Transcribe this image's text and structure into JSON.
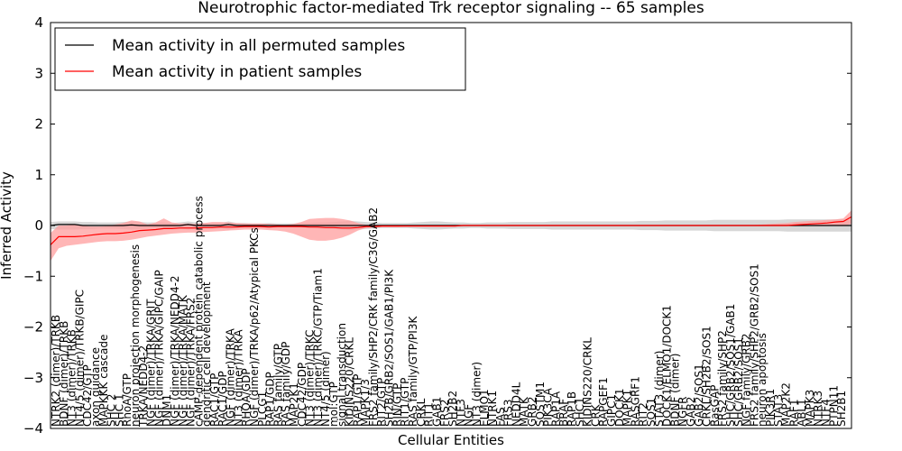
{
  "chart_data": {
    "type": "line",
    "title": "Neurotrophic factor-mediated Trk receptor signaling -- 65 samples",
    "xlabel": "Cellular Entities",
    "ylabel": "Inferred Activity",
    "ylim": [
      -4,
      4
    ],
    "yticks": [
      -4,
      -3,
      -2,
      -1,
      0,
      1,
      2,
      3,
      4
    ],
    "ytick_labels": [
      "−4",
      "−3",
      "−2",
      "−1",
      "0",
      "1",
      "2",
      "3",
      "4"
    ],
    "grid": false,
    "legend_placement": "top-left",
    "legend": [
      "Mean activity in all permuted samples",
      "Mean activity in patient samples"
    ],
    "series": [
      {
        "name": "Mean activity in all permuted samples",
        "color": "#000000",
        "band_color": "#bdbdbd",
        "values": [
          0.0,
          0.02,
          0.02,
          0.02,
          0.0,
          0.0,
          0.0,
          0.0,
          0.0,
          0.0,
          0.01,
          0.0,
          0.0,
          0.0,
          0.0,
          0.0,
          0.0,
          0.02,
          0.0,
          0.0,
          0.0,
          0.0,
          0.02,
          0.0,
          0.0,
          0.0,
          0.0,
          0.0,
          0.0,
          0.0,
          0.0,
          0.0,
          0.0,
          0.0,
          0.0,
          0.0,
          0.0,
          0.0,
          0.0,
          0.0,
          0.0,
          0.0,
          0.0,
          0.0,
          0.0,
          0.0,
          0.0,
          0.0,
          0.0,
          0.0,
          0.0,
          0.0,
          0.0,
          0.0,
          0.0,
          0.0,
          0.0,
          0.0,
          0.0,
          0.0,
          0.0,
          0.0,
          0.0,
          0.0,
          0.0,
          0.0,
          0.0,
          0.0,
          0.0,
          0.0,
          0.0,
          0.0,
          0.0,
          0.0,
          0.0,
          0.0,
          0.0,
          0.0,
          0.0,
          0.0,
          0.0,
          0.0,
          0.0,
          0.0,
          0.0,
          0.0,
          0.0,
          0.0,
          0.0,
          0.0,
          0.0,
          0.0,
          0.0,
          0.0,
          0.0,
          0.0,
          0.0,
          0.0,
          0.0,
          0.0
        ],
        "lower": [
          -0.07,
          -0.08,
          -0.08,
          -0.08,
          -0.07,
          -0.07,
          -0.06,
          -0.06,
          -0.06,
          -0.07,
          -0.08,
          -0.07,
          -0.06,
          -0.06,
          -0.06,
          -0.05,
          -0.06,
          -0.08,
          -0.06,
          -0.05,
          -0.05,
          -0.05,
          -0.08,
          -0.05,
          -0.05,
          -0.04,
          -0.04,
          -0.05,
          -0.04,
          -0.04,
          -0.04,
          -0.05,
          -0.05,
          -0.06,
          -0.06,
          -0.07,
          -0.08,
          -0.09,
          -0.08,
          -0.07,
          -0.06,
          -0.05,
          -0.05,
          -0.05,
          -0.05,
          -0.06,
          -0.07,
          -0.08,
          -0.08,
          -0.07,
          -0.06,
          -0.06,
          -0.05,
          -0.05,
          -0.06,
          -0.06,
          -0.06,
          -0.07,
          -0.07,
          -0.07,
          -0.07,
          -0.07,
          -0.08,
          -0.08,
          -0.08,
          -0.08,
          -0.08,
          -0.08,
          -0.08,
          -0.08,
          -0.08,
          -0.08,
          -0.08,
          -0.09,
          -0.09,
          -0.09,
          -0.1,
          -0.1,
          -0.1,
          -0.1,
          -0.1,
          -0.1,
          -0.11,
          -0.11,
          -0.11,
          -0.11,
          -0.11,
          -0.11,
          -0.11,
          -0.11,
          -0.11,
          -0.12,
          -0.12,
          -0.12,
          -0.12,
          -0.12,
          -0.12,
          -0.12,
          -0.12,
          -0.12
        ],
        "upper": [
          0.07,
          0.08,
          0.08,
          0.08,
          0.07,
          0.07,
          0.06,
          0.06,
          0.06,
          0.07,
          0.08,
          0.07,
          0.06,
          0.06,
          0.06,
          0.05,
          0.06,
          0.08,
          0.06,
          0.05,
          0.05,
          0.05,
          0.08,
          0.05,
          0.05,
          0.04,
          0.04,
          0.05,
          0.04,
          0.04,
          0.04,
          0.05,
          0.05,
          0.06,
          0.06,
          0.07,
          0.08,
          0.09,
          0.08,
          0.07,
          0.06,
          0.05,
          0.05,
          0.05,
          0.05,
          0.06,
          0.07,
          0.08,
          0.08,
          0.07,
          0.06,
          0.06,
          0.05,
          0.05,
          0.06,
          0.06,
          0.06,
          0.07,
          0.07,
          0.07,
          0.07,
          0.07,
          0.08,
          0.08,
          0.08,
          0.08,
          0.08,
          0.08,
          0.08,
          0.08,
          0.08,
          0.08,
          0.08,
          0.09,
          0.09,
          0.09,
          0.1,
          0.1,
          0.1,
          0.1,
          0.1,
          0.1,
          0.11,
          0.11,
          0.11,
          0.11,
          0.11,
          0.11,
          0.11,
          0.11,
          0.11,
          0.12,
          0.12,
          0.12,
          0.12,
          0.12,
          0.12,
          0.12,
          0.12,
          0.12
        ]
      },
      {
        "name": "Mean activity in patient samples",
        "color": "#ff0000",
        "band_color": "#ff9d9d",
        "values": [
          -0.38,
          -0.22,
          -0.22,
          -0.22,
          -0.21,
          -0.19,
          -0.17,
          -0.16,
          -0.16,
          -0.15,
          -0.13,
          -0.1,
          -0.09,
          -0.08,
          -0.06,
          -0.06,
          -0.05,
          -0.05,
          -0.05,
          -0.04,
          -0.04,
          -0.03,
          -0.03,
          -0.03,
          -0.02,
          -0.02,
          -0.02,
          -0.03,
          -0.02,
          -0.02,
          -0.02,
          -0.02,
          -0.03,
          -0.03,
          -0.04,
          -0.04,
          -0.05,
          -0.05,
          -0.04,
          -0.02,
          -0.02,
          -0.01,
          -0.01,
          -0.01,
          -0.01,
          -0.01,
          -0.01,
          -0.01,
          -0.01,
          -0.01,
          -0.01,
          0.0,
          0.0,
          0.0,
          0.0,
          0.0,
          0.0,
          0.0,
          0.0,
          0.0,
          0.0,
          0.0,
          0.0,
          0.0,
          0.0,
          0.0,
          0.0,
          0.0,
          0.0,
          0.0,
          0.0,
          0.0,
          0.0,
          0.0,
          0.0,
          0.0,
          0.0,
          0.0,
          0.0,
          0.0,
          0.0,
          0.0,
          0.0,
          0.0,
          0.0,
          0.0,
          0.0,
          0.0,
          0.0,
          0.0,
          0.0,
          0.0,
          0.01,
          0.02,
          0.03,
          0.04,
          0.05,
          0.07,
          0.08,
          0.17
        ],
        "lower": [
          -0.7,
          -0.45,
          -0.4,
          -0.38,
          -0.36,
          -0.34,
          -0.32,
          -0.31,
          -0.31,
          -0.3,
          -0.28,
          -0.25,
          -0.22,
          -0.2,
          -0.18,
          -0.16,
          -0.15,
          -0.14,
          -0.14,
          -0.13,
          -0.12,
          -0.11,
          -0.1,
          -0.09,
          -0.08,
          -0.08,
          -0.08,
          -0.09,
          -0.1,
          -0.12,
          -0.16,
          -0.22,
          -0.28,
          -0.3,
          -0.3,
          -0.28,
          -0.24,
          -0.18,
          -0.1,
          -0.05,
          -0.04,
          -0.03,
          -0.03,
          -0.03,
          -0.02,
          -0.02,
          -0.02,
          -0.02,
          -0.02,
          -0.02,
          -0.02,
          -0.01,
          -0.01,
          -0.01,
          -0.01,
          -0.01,
          -0.01,
          -0.01,
          -0.01,
          -0.01,
          -0.01,
          -0.01,
          -0.01,
          -0.01,
          -0.01,
          -0.01,
          -0.01,
          -0.01,
          -0.01,
          -0.01,
          -0.01,
          -0.01,
          -0.01,
          -0.01,
          -0.01,
          -0.01,
          -0.01,
          -0.01,
          -0.01,
          -0.01,
          -0.01,
          -0.01,
          -0.01,
          -0.01,
          -0.01,
          -0.01,
          -0.01,
          -0.01,
          -0.01,
          -0.01,
          -0.01,
          -0.01,
          -0.01,
          -0.01,
          -0.01,
          -0.01,
          -0.01,
          -0.01,
          -0.01,
          0.03
        ],
        "upper": [
          -0.15,
          0.0,
          0.0,
          0.02,
          0.0,
          -0.02,
          -0.02,
          -0.01,
          0.02,
          0.05,
          0.1,
          0.08,
          0.02,
          0.06,
          0.14,
          0.06,
          0.04,
          0.04,
          0.03,
          0.05,
          0.07,
          0.07,
          0.06,
          0.05,
          0.04,
          0.04,
          0.04,
          0.03,
          0.02,
          0.01,
          0.03,
          0.07,
          0.13,
          0.14,
          0.15,
          0.15,
          0.13,
          0.1,
          0.05,
          0.01,
          0.0,
          0.01,
          0.01,
          0.01,
          0.01,
          0.01,
          0.01,
          0.01,
          0.01,
          0.01,
          0.01,
          0.01,
          0.01,
          0.01,
          0.01,
          0.01,
          0.01,
          0.01,
          0.01,
          0.01,
          0.01,
          0.01,
          0.01,
          0.01,
          0.01,
          0.01,
          0.01,
          0.01,
          0.01,
          0.01,
          0.01,
          0.01,
          0.01,
          0.01,
          0.01,
          0.01,
          0.01,
          0.01,
          0.01,
          0.01,
          0.01,
          0.01,
          0.01,
          0.01,
          0.01,
          0.01,
          0.01,
          0.01,
          0.02,
          0.03,
          0.04,
          0.05,
          0.07,
          0.08,
          0.09,
          0.1,
          0.11,
          0.12,
          0.14,
          0.3
        ]
      }
    ],
    "entity_labels": [
      "NTRK2 (dimer)/TRKB",
      "BDNF (dimer)/TRKB",
      "NT3 (dimer)/TRKB",
      "NT4/5 (dimer)/TRKB/GIPC",
      "CDC42/GTP",
      "axon guidance",
      "MAPKKK cascade",
      "SHC 2",
      "SHC 1",
      "RhoA/GTP",
      "neuron projection morphogenesis",
      "TRKA/NEDD4-2",
      "NGF (dimer)/TRKA/GRIT",
      "NGF (dimer)/TRKA/GIPC/GAIP",
      "DNM1",
      "NGF (dimer)/TRKA/NEDD4-2",
      "NGF (dimer)/TRKA/MATK",
      "NGF (dimer)/TRKA/FRS2",
      "cAMP-dependent protein catabolic process",
      "dendritic cell development",
      "RAC1/GTP",
      "RAC1/GDP",
      "NGF (dimer)/TRKA",
      "NT3 (dimer)/TRKA",
      "RHOA/GDP",
      "NGF (dimer)/TRKA/p62/Atypical PKCs",
      "PLCG1",
      "RAP1/GDP",
      "RAS family/GTP",
      "RAS family/GDP",
      "MAP2K1",
      "CDC42/GDP",
      "NT3 (dimer)/TRKC",
      "NT3 (dimer)/TRKC/GTP/Tiam1",
      "NT4/5 (dimer)",
      "mol:GTP",
      "signal transduction",
      "KIDINS220/CRKL",
      "RAP1/GTP",
      "MAPK1/3",
      "FRS2 family/SHP2/CRK family/C3G/GAB2",
      "RIT2/GTP",
      "SH2B/GRB2/SOS1/GAB1/PI3K",
      "RIN/GTP",
      "RIT1/GTP",
      "RAS family/GTP/PI3K",
      "CRKL",
      "RIT1",
      "GAB1",
      "FRS2",
      "SH2B2",
      "NTF3",
      "NGF",
      "NT3 (dimer)",
      "ELMO1",
      "NTRK1",
      "FAS",
      "FRS3",
      "NEDD4L",
      "MATK",
      "GRB2",
      "SQSTM1",
      "PIK3CA",
      "RAP1A",
      "BRAF",
      "RAP1B",
      "SHC1",
      "KIDINS220/CRKL",
      "CRK",
      "RAPGEF1",
      "GIPC1",
      "DOCK1",
      "MAPK1",
      "RASGRF1",
      "RIT2",
      "SOS1",
      "STAT3 (dimer)",
      "DOCK1/ELMO1/DOCK1",
      "BDNF (dimer)",
      "NGFR",
      "GAB2",
      "GAB2/SOS1",
      "CRKL/SH2B2/SOS1",
      "RasGAP",
      "FRS2 family/SHP2",
      "SHC/GRB2/SOS1/GAB1",
      "SHC/GRB2/SOS1",
      "NGF family/GRB2",
      "FRS2 family/SHP2/GRB2/SOS1",
      "neuron apoptosis",
      "PIK3R1",
      "STAT3",
      "MAP2K2",
      "RAF1",
      "ABL1",
      "MAPK3",
      "NTRK3",
      "NTF4",
      "PTPN11",
      "SH2B1"
    ]
  }
}
